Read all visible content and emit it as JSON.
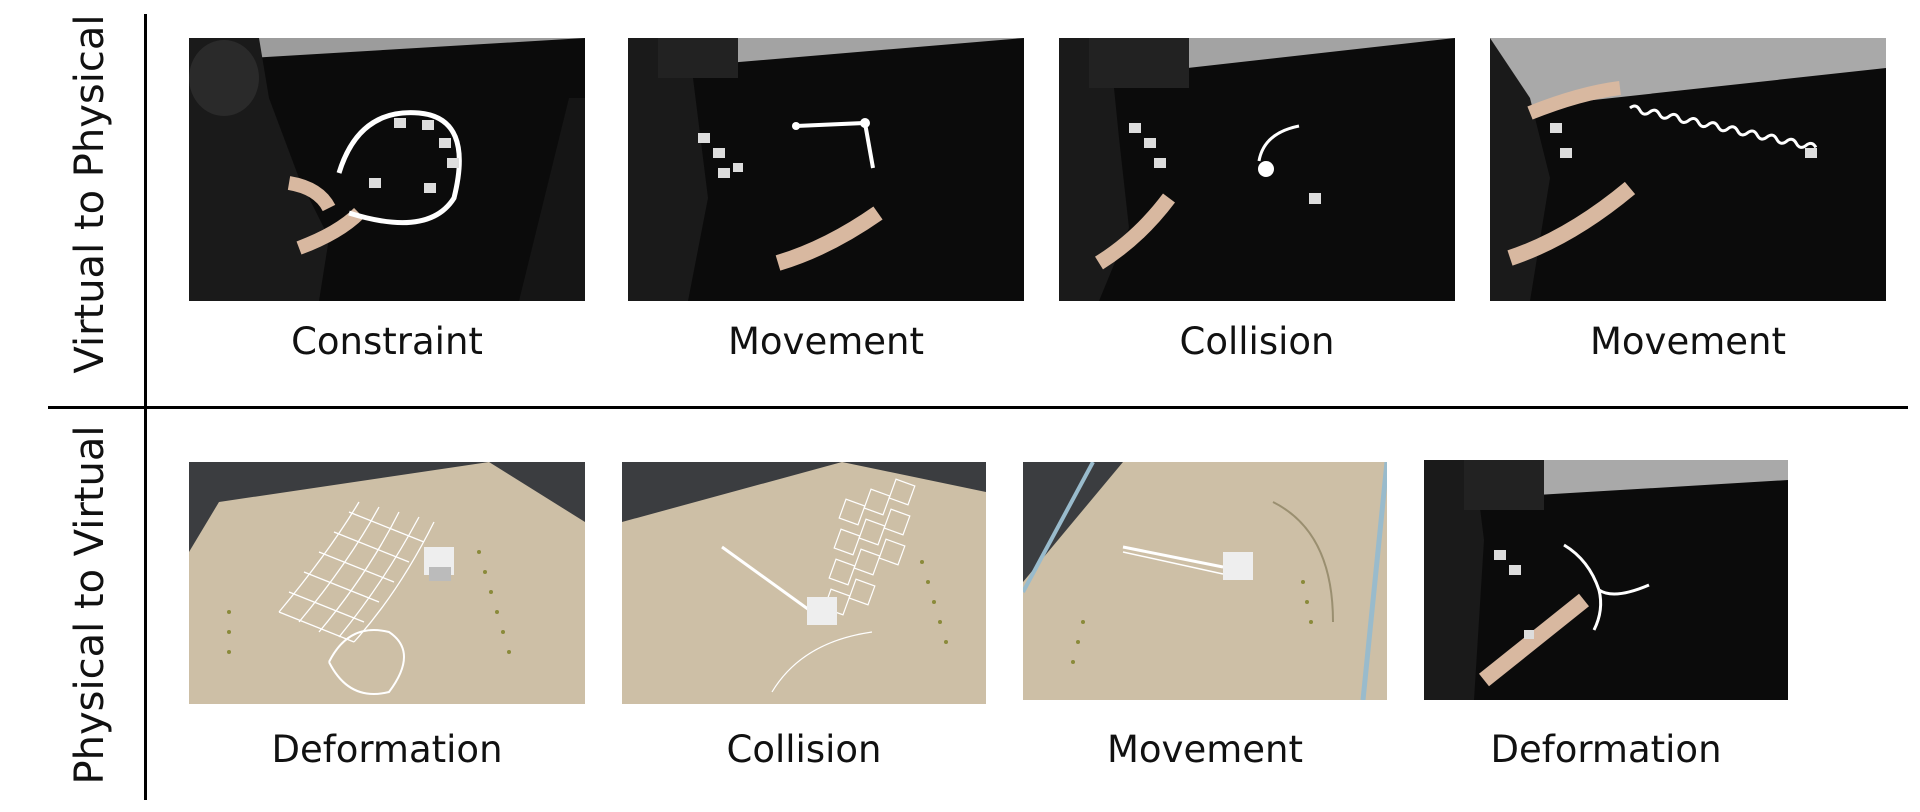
{
  "rows": [
    {
      "label": "Virtual to Physical",
      "items": [
        {
          "caption": "Constraint"
        },
        {
          "caption": "Movement"
        },
        {
          "caption": "Collision"
        },
        {
          "caption": "Movement"
        }
      ]
    },
    {
      "label": "Physical to Virtual",
      "items": [
        {
          "caption": "Deformation"
        },
        {
          "caption": "Collision"
        },
        {
          "caption": "Movement"
        },
        {
          "caption": "Deformation"
        }
      ]
    }
  ],
  "colors": {
    "table_black": "#0b0b0b",
    "wall_gray": "#a9a9a9",
    "board_beige": "#cdbfa6",
    "projection_white": "#ffffff"
  }
}
